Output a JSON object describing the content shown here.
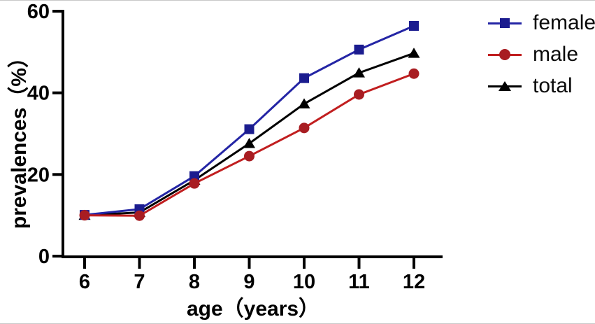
{
  "chart_data": {
    "type": "line",
    "title": "",
    "xlabel": "age（years）",
    "ylabel": "prevalences（%）",
    "x": [
      6,
      7,
      8,
      9,
      10,
      11,
      12
    ],
    "x_tick_labels": [
      "6",
      "7",
      "8",
      "9",
      "10",
      "11",
      "12"
    ],
    "y_ticks": [
      0,
      20,
      40,
      60
    ],
    "ylim": [
      0,
      60
    ],
    "grid": false,
    "legend_position": "right-outside",
    "axis_color": "#000000",
    "series": [
      {
        "name": "female",
        "marker": "square",
        "marker_color": "#1b1c8f",
        "line_color": "#2425a5",
        "values": [
          10.1,
          11.5,
          19.6,
          31.1,
          43.6,
          50.6,
          56.4
        ]
      },
      {
        "name": "male",
        "marker": "circle",
        "marker_color": "#a81d22",
        "line_color": "#c11e1f",
        "values": [
          10.0,
          9.9,
          17.8,
          24.5,
          31.4,
          39.6,
          44.7
        ]
      },
      {
        "name": "total",
        "marker": "triangle",
        "marker_color": "#000000",
        "line_color": "#000000",
        "values": [
          10.0,
          10.7,
          18.6,
          27.6,
          37.3,
          44.9,
          49.7
        ]
      }
    ]
  }
}
